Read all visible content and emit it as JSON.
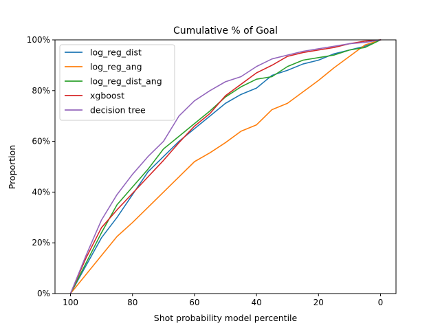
{
  "chart_data": {
    "type": "line",
    "title": "Cumulative % of Goal",
    "xlabel": "Shot probability model percentile",
    "ylabel": "Proportion",
    "xlim": [
      105,
      -5
    ],
    "ylim": [
      0,
      100
    ],
    "x_ticks": [
      100,
      80,
      60,
      40,
      20,
      0
    ],
    "y_ticks": [
      0,
      20,
      40,
      60,
      80,
      100
    ],
    "y_tick_suffix": "%",
    "legend_position": "upper-left",
    "grid": false,
    "x": [
      100,
      95,
      90,
      85,
      80,
      75,
      70,
      65,
      60,
      55,
      50,
      45,
      40,
      35,
      30,
      25,
      20,
      15,
      10,
      5,
      0
    ],
    "series": [
      {
        "name": "log_reg_dist",
        "color": "#1f77b4",
        "values": [
          0,
          11,
          22,
          30,
          39,
          48,
          54,
          60,
          65,
          70,
          75,
          78.5,
          81,
          86,
          88,
          90.5,
          92,
          94.5,
          96,
          97.5,
          100
        ]
      },
      {
        "name": "log_reg_ang",
        "color": "#ff7f0e",
        "values": [
          0,
          7.5,
          15,
          22.5,
          28,
          34,
          40,
          46,
          52,
          55.5,
          59.5,
          64,
          66.5,
          72.5,
          75,
          79.5,
          84,
          89,
          93.5,
          98,
          100
        ]
      },
      {
        "name": "log_reg_dist_ang",
        "color": "#2ca02c",
        "values": [
          0,
          12,
          24,
          35,
          42,
          49,
          57,
          62,
          67,
          72,
          77.5,
          81.5,
          84.5,
          85.5,
          89.5,
          92,
          93,
          94,
          96,
          97,
          100
        ]
      },
      {
        "name": "xgboost",
        "color": "#d62728",
        "values": [
          0,
          14,
          26,
          33,
          39.5,
          46,
          52.5,
          59.5,
          66,
          71,
          78,
          82.5,
          87,
          90,
          93.5,
          95,
          96,
          97,
          98.5,
          99.5,
          100
        ]
      },
      {
        "name": "decision tree",
        "color": "#9467bd",
        "values": [
          0,
          15,
          29,
          39,
          47,
          54,
          60,
          70,
          76,
          80,
          83.5,
          85.5,
          89.5,
          92.5,
          94,
          95.5,
          96.5,
          97.5,
          98.5,
          99,
          100
        ]
      }
    ]
  }
}
